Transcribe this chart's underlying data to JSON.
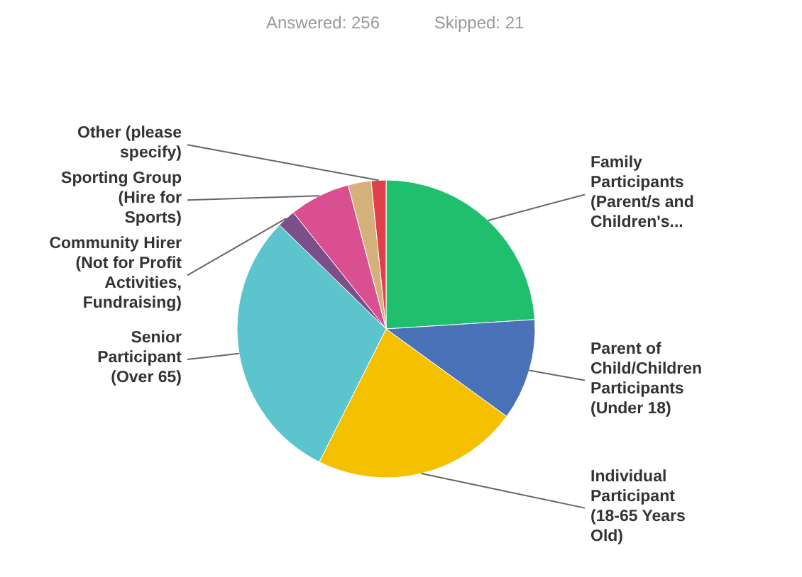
{
  "chart_data": {
    "type": "pie",
    "categories": [
      "Family Participants (Parent/s and Children's...",
      "Parent of Child/Children Participants (Under 18)",
      "Individual Participant (18-65 Years Old)",
      "Senior Participant (Over 65)",
      "Community Hirer (Not for Profit Activities, Fundraising)",
      "Sporting Group (Hire for Sports)",
      null,
      "Other (please specify)"
    ],
    "values": [
      24,
      11,
      22.4,
      29.9,
      2,
      6.6,
      2.5,
      1.6
    ],
    "colors": [
      "#1fbf6e",
      "#4a72b8",
      "#f5c000",
      "#5cc4cc",
      "#7a4f8a",
      "#d94f8f",
      "#d4b07a",
      "#e0404a"
    ],
    "annotations": [
      "Answered: 256",
      "Skipped: 21"
    ]
  }
}
